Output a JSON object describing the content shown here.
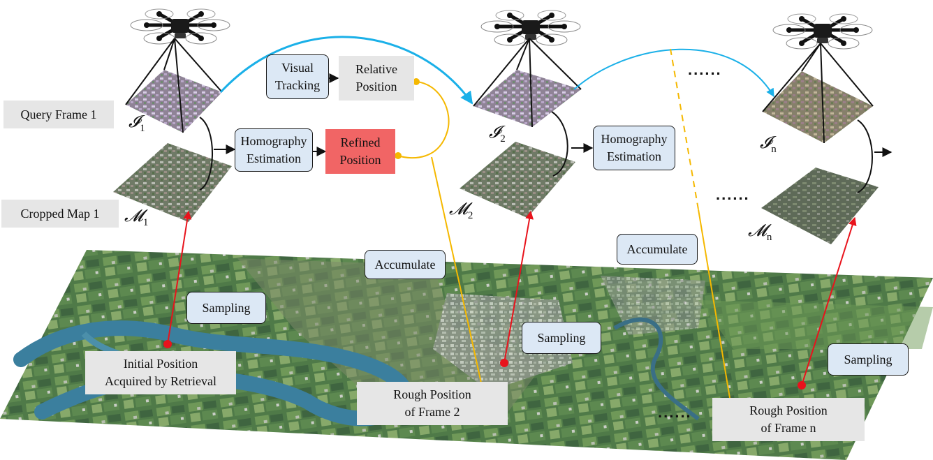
{
  "labels": {
    "query_frame": "Query Frame 1",
    "cropped_map": "Cropped Map 1",
    "visual_tracking": "Visual\nTracking",
    "relative_position": "Relative\nPosition",
    "homography_1": "Homography\nEstimation",
    "refined_position": "Refined\nPosition",
    "homography_2": "Homography\nEstimation",
    "accumulate_1": "Accumulate",
    "accumulate_2": "Accumulate",
    "sampling_1": "Sampling",
    "sampling_2": "Sampling",
    "sampling_3": "Sampling",
    "initial_position": "Initial Position\nAcquired by Retrieval",
    "rough_position_2": "Rough Position\nof Frame 2",
    "rough_position_n": "Rough Position\nof Frame n",
    "ellipsis": "......"
  },
  "math": {
    "I1": {
      "sym": "𝓘",
      "sub": "1"
    },
    "I2": {
      "sym": "𝓘",
      "sub": "2"
    },
    "In": {
      "sym": "𝓘",
      "sub": "n"
    },
    "M1": {
      "sym": "𝓜",
      "sub": "1"
    },
    "M2": {
      "sym": "𝓜",
      "sub": "2"
    },
    "Mn": {
      "sym": "𝓜",
      "sub": "n"
    }
  },
  "colors": {
    "tracking_arrow": "#1ab0e8",
    "accumulate_line": "#f5b800",
    "sampling_arrow": "#e8131c",
    "box_blue": "#dce8f5",
    "box_gray": "#e6e6e6",
    "box_red": "#f16565"
  }
}
